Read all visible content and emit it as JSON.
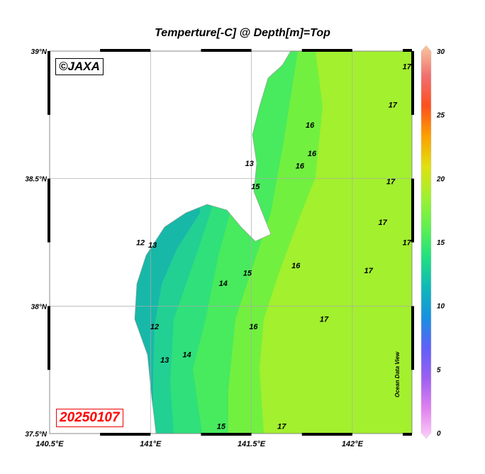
{
  "title": "Temperture[-C] @ Depth[m]=Top",
  "watermark": "©JAXA",
  "date_label": "20250107",
  "credit": "Ocean Data View",
  "map": {
    "lon_range": [
      140.5,
      142.3
    ],
    "lat_range": [
      37.5,
      39.0
    ],
    "lon_ticks": [
      {
        "v": 140.5,
        "label": "140.5°E"
      },
      {
        "v": 141,
        "label": "141°E"
      },
      {
        "v": 141.5,
        "label": "141.5°E"
      },
      {
        "v": 142,
        "label": "142°E"
      }
    ],
    "lat_ticks": [
      {
        "v": 39,
        "label": "39°N"
      },
      {
        "v": 38.5,
        "label": "38.5°N"
      },
      {
        "v": 38,
        "label": "38°N"
      },
      {
        "v": 37.5,
        "label": "37.5°N"
      }
    ],
    "grid": true,
    "land_color": "#ffffff",
    "contour_labels": [
      {
        "t": "17",
        "lon": 142.27,
        "lat": 38.94
      },
      {
        "t": "17",
        "lon": 142.2,
        "lat": 38.79
      },
      {
        "t": "16",
        "lon": 141.79,
        "lat": 38.71
      },
      {
        "t": "16",
        "lon": 141.8,
        "lat": 38.6
      },
      {
        "t": "13",
        "lon": 141.49,
        "lat": 38.56
      },
      {
        "t": "16",
        "lon": 141.74,
        "lat": 38.55
      },
      {
        "t": "15",
        "lon": 141.52,
        "lat": 38.47
      },
      {
        "t": "17",
        "lon": 142.19,
        "lat": 38.49
      },
      {
        "t": "17",
        "lon": 142.15,
        "lat": 38.33
      },
      {
        "t": "17",
        "lon": 142.27,
        "lat": 38.25
      },
      {
        "t": "12",
        "lon": 140.95,
        "lat": 38.25
      },
      {
        "t": "13",
        "lon": 141.01,
        "lat": 38.24
      },
      {
        "t": "16",
        "lon": 141.72,
        "lat": 38.16
      },
      {
        "t": "15",
        "lon": 141.48,
        "lat": 38.13
      },
      {
        "t": "17",
        "lon": 142.08,
        "lat": 38.14
      },
      {
        "t": "14",
        "lon": 141.36,
        "lat": 38.09
      },
      {
        "t": "17",
        "lon": 141.86,
        "lat": 37.95
      },
      {
        "t": "16",
        "lon": 141.51,
        "lat": 37.92
      },
      {
        "t": "12",
        "lon": 141.02,
        "lat": 37.92
      },
      {
        "t": "13",
        "lon": 141.07,
        "lat": 37.79
      },
      {
        "t": "14",
        "lon": 141.18,
        "lat": 37.81
      },
      {
        "t": "15",
        "lon": 141.35,
        "lat": 37.53
      },
      {
        "t": "17",
        "lon": 141.65,
        "lat": 37.53
      }
    ]
  },
  "colorbar": {
    "min": 0,
    "max": 30,
    "ticks": [
      "0",
      "5",
      "10",
      "15",
      "20",
      "25",
      "30"
    ],
    "stops": [
      "#fcd0f8",
      "#e080f0",
      "#9c60f0",
      "#6060f8",
      "#1890e0",
      "#10b8b8",
      "#20e080",
      "#60f050",
      "#a0f030",
      "#e0e010",
      "#fca000",
      "#fc5020",
      "#f07070",
      "#f8c8a0"
    ]
  }
}
